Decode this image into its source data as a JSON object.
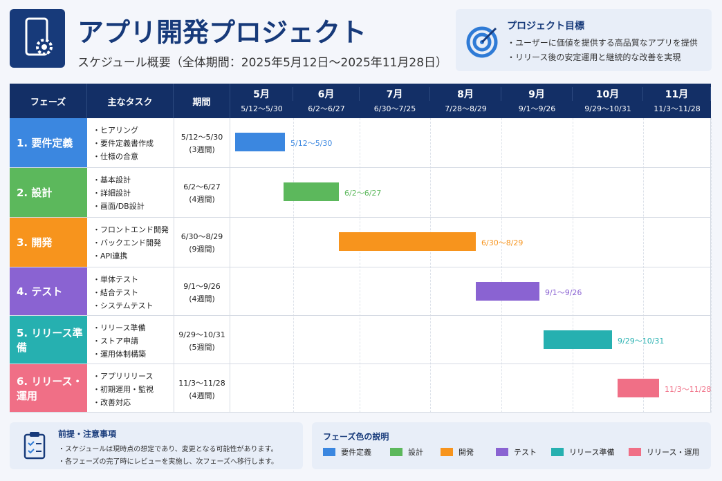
{
  "header": {
    "title": "アプリ開発プロジェクト",
    "subtitle": "スケジュール概要（全体期間：2025年5月12日〜2025年11月28日）"
  },
  "goal": {
    "title": "プロジェクト目標",
    "items": [
      "・ユーザーに価値を提供する高品質なアプリを提供",
      "・リリース後の安定運用と継続的な改善を実現"
    ]
  },
  "table": {
    "headers": [
      "フェーズ",
      "主なタスク",
      "期間"
    ],
    "months": [
      {
        "name": "5月",
        "range": "5/12〜5/30"
      },
      {
        "name": "6月",
        "range": "6/2〜6/27"
      },
      {
        "name": "7月",
        "range": "6/30〜7/25"
      },
      {
        "name": "8月",
        "range": "7/28〜8/29"
      },
      {
        "name": "9月",
        "range": "9/1〜9/26"
      },
      {
        "name": "10月",
        "range": "9/29〜10/31"
      },
      {
        "name": "11月",
        "range": "11/3〜11/28"
      }
    ],
    "rows": [
      {
        "phase": "1. 要件定義",
        "tasks": [
          "・ヒアリング",
          "・要件定義書作成",
          "・仕様の合意"
        ],
        "period": "5/12〜5/30",
        "weeks": "(3週間)"
      },
      {
        "phase": "2. 設計",
        "tasks": [
          "・基本設計",
          "・詳細設計",
          "・画面/DB設計"
        ],
        "period": "6/2〜6/27",
        "weeks": "(4週間)"
      },
      {
        "phase": "3. 開発",
        "tasks": [
          "・フロントエンド開発",
          "・バックエンド開発",
          "・API連携"
        ],
        "period": "6/30〜8/29",
        "weeks": "(9週間)"
      },
      {
        "phase": "4. テスト",
        "tasks": [
          "・単体テスト",
          "・結合テスト",
          "・システムテスト"
        ],
        "period": "9/1〜9/26",
        "weeks": "(4週間)"
      },
      {
        "phase": "5. リリース準備",
        "tasks": [
          "・リリース準備",
          "・ストア申請",
          "・運用体制構築"
        ],
        "period": "9/29〜10/31",
        "weeks": "(5週間)"
      },
      {
        "phase": "6. リリース・運用",
        "tasks": [
          "・アプリリリース",
          "・初期運用・監視",
          "・改善対応"
        ],
        "period": "11/3〜11/28",
        "weeks": "(4週間)"
      }
    ]
  },
  "notes": {
    "title": "前提・注意事項",
    "items": [
      "・スケジュールは現時点の想定であり、変更となる可能性があります。",
      "・各フェーズの完了時にレビューを実施し、次フェーズへ移行します。"
    ]
  },
  "legend": {
    "title": "フェーズ色の説明",
    "items": [
      "要件定義",
      "設計",
      "開発",
      "テスト",
      "リリース準備",
      "リリース・運用"
    ]
  }
}
